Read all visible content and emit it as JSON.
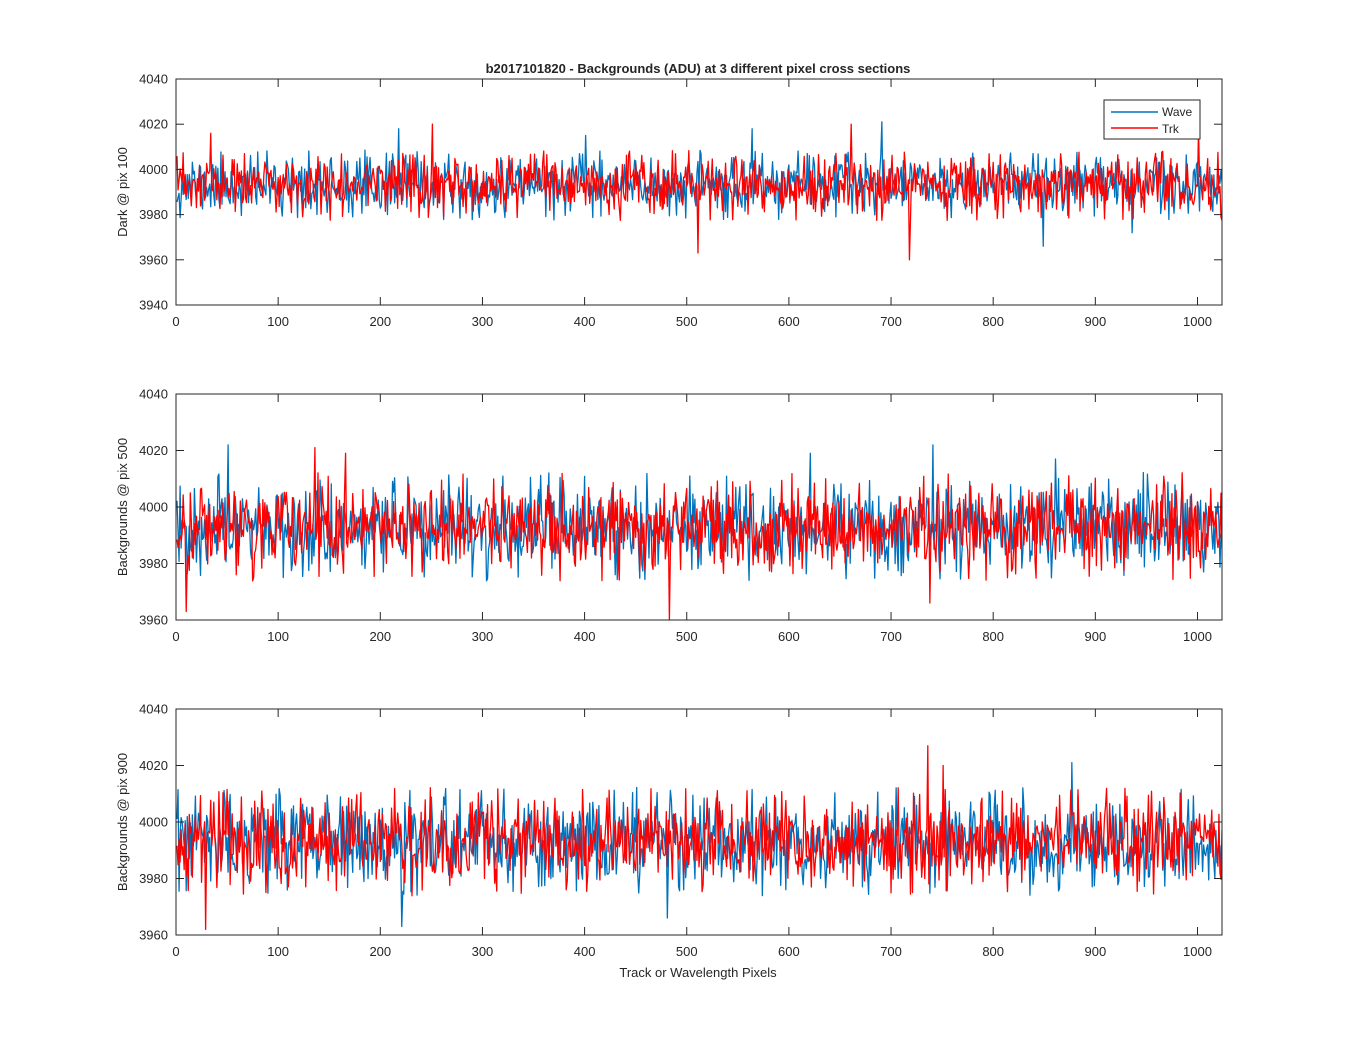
{
  "figure": {
    "title": "b2017101820 - Backgrounds (ADU) at 3 different pixel cross sections",
    "xlabel": "Track or Wavelength Pixels",
    "legend": {
      "placement": "top-right of first panel",
      "entries": [
        {
          "name": "Wave",
          "color": "#0072BD"
        },
        {
          "name": "Trk",
          "color": "#FF0000"
        }
      ]
    }
  },
  "chart_data": [
    {
      "type": "line",
      "ylabel": "Dark @ pix 100",
      "xlim": [
        0,
        1024
      ],
      "ylim": [
        3940,
        4040
      ],
      "xticks": [
        0,
        100,
        200,
        300,
        400,
        500,
        600,
        700,
        800,
        900,
        1000
      ],
      "yticks": [
        3940,
        3960,
        3980,
        4000,
        4020,
        4040
      ],
      "n_points": 1024,
      "series": [
        {
          "name": "Wave",
          "color": "#0072BD",
          "mean": 3993,
          "std": 6.5,
          "seed": 11,
          "features": [
            [
              217,
              4018
            ],
            [
              400,
              4015
            ],
            [
              563,
              4018
            ],
            [
              690,
              4021
            ],
            [
              848,
              3966
            ],
            [
              935,
              3972
            ]
          ]
        },
        {
          "name": "Trk",
          "color": "#FF0000",
          "mean": 3993,
          "std": 6.5,
          "seed": 23,
          "features": [
            [
              33,
              4016
            ],
            [
              250,
              4020
            ],
            [
              510,
              3963
            ],
            [
              660,
              4020
            ],
            [
              717,
              3960
            ],
            [
              1000,
              4018
            ]
          ]
        }
      ]
    },
    {
      "type": "line",
      "ylabel": "Backgrounds @ pix 500",
      "xlim": [
        0,
        1024
      ],
      "ylim": [
        3960,
        4040
      ],
      "xticks": [
        0,
        100,
        200,
        300,
        400,
        500,
        600,
        700,
        800,
        900,
        1000
      ],
      "yticks": [
        3960,
        3980,
        4000,
        4020,
        4040
      ],
      "n_points": 1024,
      "series": [
        {
          "name": "Wave",
          "color": "#0072BD",
          "mean": 3993,
          "std": 8,
          "seed": 37,
          "features": [
            [
              50,
              4022
            ],
            [
              620,
              4019
            ],
            [
              740,
              4022
            ],
            [
              860,
              4017
            ]
          ]
        },
        {
          "name": "Trk",
          "color": "#FF0000",
          "mean": 3993,
          "std": 8,
          "seed": 41,
          "features": [
            [
              9,
              3963
            ],
            [
              135,
              4021
            ],
            [
              165,
              4019
            ],
            [
              482,
              3960
            ],
            [
              737,
              3966
            ]
          ]
        }
      ]
    },
    {
      "type": "line",
      "ylabel": "Backgrounds @ pix 900",
      "xlabel": "Track or Wavelength Pixels",
      "xlim": [
        0,
        1024
      ],
      "ylim": [
        3960,
        4040
      ],
      "xticks": [
        0,
        100,
        200,
        300,
        400,
        500,
        600,
        700,
        800,
        900,
        1000
      ],
      "yticks": [
        3960,
        3980,
        4000,
        4020,
        4040
      ],
      "n_points": 1024,
      "series": [
        {
          "name": "Wave",
          "color": "#0072BD",
          "mean": 3993,
          "std": 8,
          "seed": 53,
          "features": [
            [
              220,
              3963
            ],
            [
              480,
              3966
            ],
            [
              876,
              4021
            ]
          ]
        },
        {
          "name": "Trk",
          "color": "#FF0000",
          "mean": 3993,
          "std": 8,
          "seed": 67,
          "features": [
            [
              28,
              3962
            ],
            [
              735,
              4027
            ],
            [
              750,
              4020
            ]
          ]
        }
      ]
    }
  ]
}
